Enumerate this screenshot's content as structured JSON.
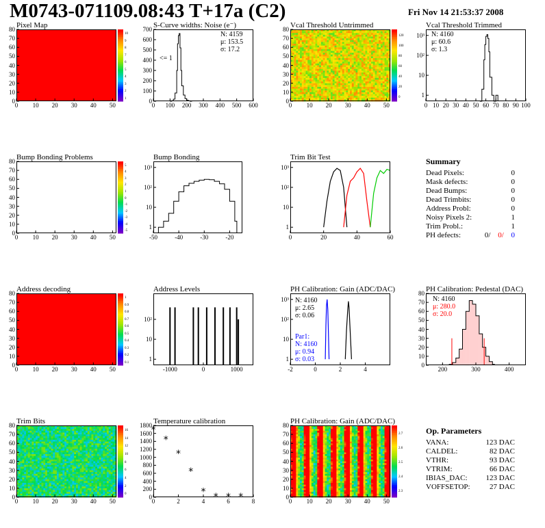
{
  "header": {
    "title": "M0743-071109.08:43 T+17a (C2)",
    "date": "Fri Nov 14 21:53:37 2008"
  },
  "panels": {
    "pixel_map": {
      "title": "Pixel Map"
    },
    "scurve": {
      "title": "S-Curve widths: Noise (e⁻)",
      "n": "N: 4159",
      "mu": "μ: 153.5",
      "sigma": "σ: 17.2",
      "underflow": "<= 1"
    },
    "vcal_untrimmed": {
      "title": "Vcal Threshold Untrimmed"
    },
    "vcal_trimmed": {
      "title": "Vcal Threshold Trimmed",
      "n": "N: 4160",
      "mu": "μ: 60.6",
      "sigma": "σ: 1.3"
    },
    "bump_problems": {
      "title": "Bump Bonding Problems"
    },
    "bump_bonding": {
      "title": "Bump Bonding"
    },
    "trim_bit_test": {
      "title": "Trim Bit Test"
    },
    "address_decoding": {
      "title": "Address decoding"
    },
    "address_levels": {
      "title": "Address Levels"
    },
    "ph_gain": {
      "title": "PH Calibration: Gain (ADC/DAC)",
      "n": "N: 4160",
      "mu": "μ: 2.65",
      "sigma": "σ: 0.06",
      "par1": "Par1:",
      "n2": "N: 4160",
      "mu2": "μ: 0.94",
      "sigma2": "σ: 0.03"
    },
    "ph_pedestal": {
      "title": "PH Calibration: Pedestal (DAC)",
      "n": "N: 4160",
      "mu": "μ: 280.0",
      "sigma": "σ: 20.0"
    },
    "trim_bits": {
      "title": "Trim Bits"
    },
    "temperature": {
      "title": "Temperature calibration"
    },
    "ph_gain_map": {
      "title": "PH Calibration: Gain (ADC/DAC)"
    }
  },
  "summary": {
    "heading": "Summary",
    "rows": [
      {
        "label": "Dead Pixels:",
        "value": "0"
      },
      {
        "label": "Mask defects:",
        "value": "0"
      },
      {
        "label": "Dead Bumps:",
        "value": "0"
      },
      {
        "label": "Dead Trimbits:",
        "value": "0"
      },
      {
        "label": "Address Probl:",
        "value": "0"
      },
      {
        "label": "Noisy Pixels 2:",
        "value": "1"
      },
      {
        "label": "Trim Probl.:",
        "value": "1"
      }
    ],
    "ph_label": "PH defects:",
    "ph_values": [
      "0/",
      "0/",
      "0"
    ]
  },
  "op_params": {
    "heading": "Op. Parameters",
    "rows": [
      {
        "label": "VANA:",
        "value": "123 DAC"
      },
      {
        "label": "CALDEL:",
        "value": "82 DAC"
      },
      {
        "label": "VTHR:",
        "value": "93 DAC"
      },
      {
        "label": "VTRIM:",
        "value": "66 DAC"
      },
      {
        "label": "IBIAS_DAC:",
        "value": "123 DAC"
      },
      {
        "label": "VOFFSETOP:",
        "value": "27 DAC"
      }
    ]
  },
  "colors": {
    "red": "#ff0000",
    "blue": "#0000ff",
    "green": "#00cc00"
  },
  "chart_data": [
    {
      "type": "heatmap",
      "title": "Pixel Map",
      "xlim": [
        0,
        52
      ],
      "ylim": [
        0,
        80
      ],
      "xticks": [
        "0",
        "10",
        "20",
        "30",
        "40",
        "50"
      ],
      "yticks": [
        "0",
        "10",
        "20",
        "30",
        "40",
        "50",
        "60",
        "70",
        "80"
      ],
      "zticks": [
        "1",
        "2",
        "3",
        "4",
        "5",
        "6",
        "7",
        "8",
        "9",
        "10"
      ],
      "uniform_value": 10
    },
    {
      "type": "bar",
      "title": "S-Curve widths: Noise (e⁻)",
      "xlim": [
        0,
        600
      ],
      "ylim": [
        0,
        700
      ],
      "xticks": [
        "0",
        "100",
        "200",
        "300",
        "400",
        "500",
        "600"
      ],
      "yticks": [
        "0",
        "100",
        "200",
        "300",
        "400",
        "500",
        "600",
        "700"
      ],
      "x": [
        100,
        110,
        120,
        130,
        140,
        145,
        150,
        155,
        160,
        165,
        170,
        180,
        190,
        200,
        210,
        220
      ],
      "values": [
        0,
        5,
        20,
        80,
        300,
        560,
        640,
        660,
        520,
        300,
        150,
        60,
        25,
        10,
        4,
        0
      ]
    },
    {
      "type": "heatmap",
      "title": "Vcal Threshold Untrimmed",
      "xlim": [
        0,
        52
      ],
      "ylim": [
        0,
        80
      ],
      "xticks": [
        "0",
        "10",
        "20",
        "30",
        "40",
        "50"
      ],
      "yticks": [
        "0",
        "10",
        "20",
        "30",
        "40",
        "50",
        "60",
        "70",
        "80"
      ],
      "zticks": [
        "0",
        "20",
        "40",
        "60",
        "80",
        "100",
        "120"
      ]
    },
    {
      "type": "bar",
      "title": "Vcal Threshold Trimmed",
      "log_y": true,
      "xlim": [
        0,
        100
      ],
      "ylim": [
        0.5,
        2000
      ],
      "xticks": [
        "0",
        "10",
        "20",
        "30",
        "40",
        "50",
        "60",
        "70",
        "80",
        "90",
        "100"
      ],
      "yticks": [
        "1",
        "10",
        "10²",
        "10³"
      ],
      "x": [
        54,
        56,
        58,
        59,
        60,
        61,
        62,
        63,
        64,
        66,
        68,
        70
      ],
      "values": [
        0,
        2,
        60,
        350,
        900,
        1100,
        700,
        150,
        8,
        1,
        0,
        1
      ]
    },
    {
      "type": "heatmap",
      "title": "Bump Bonding Problems",
      "xlim": [
        0,
        52
      ],
      "ylim": [
        0,
        80
      ],
      "xticks": [
        "0",
        "10",
        "20",
        "30",
        "40",
        "50"
      ],
      "yticks": [
        "0",
        "10",
        "20",
        "30",
        "40",
        "50",
        "60",
        "70",
        "80"
      ],
      "zticks": [
        "-5",
        "-4",
        "-3",
        "-2",
        "-1",
        "0",
        "1",
        "2",
        "3",
        "4",
        "5"
      ],
      "empty": true
    },
    {
      "type": "bar",
      "title": "Bump Bonding",
      "log_y": true,
      "xlim": [
        -50,
        -15
      ],
      "ylim": [
        0.5,
        2000
      ],
      "xticks": [
        "-50",
        "-40",
        "-30",
        "-20"
      ],
      "yticks": [
        "1",
        "10",
        "10²",
        "10³"
      ],
      "x": [
        -48,
        -46,
        -44,
        -42,
        -40,
        -38,
        -36,
        -34,
        -32,
        -30,
        -28,
        -26,
        -24,
        -22,
        -20,
        -18
      ],
      "values": [
        1,
        2,
        5,
        20,
        60,
        120,
        160,
        200,
        230,
        250,
        240,
        200,
        150,
        80,
        20,
        2
      ]
    },
    {
      "type": "line",
      "title": "Trim Bit Test",
      "log_y": true,
      "xlim": [
        0,
        60
      ],
      "ylim": [
        0.5,
        2000
      ],
      "xticks": [
        "0",
        "20",
        "40",
        "60"
      ],
      "yticks": [
        "1",
        "10",
        "10²",
        "10³"
      ],
      "series": [
        {
          "color": "#000000",
          "x": [
            20,
            22,
            24,
            26,
            28,
            30,
            32,
            34
          ],
          "y": [
            1,
            20,
            200,
            600,
            900,
            700,
            100,
            1
          ]
        },
        {
          "color": "#ff0000",
          "x": [
            32,
            34,
            36,
            38,
            40,
            42,
            44,
            46,
            48
          ],
          "y": [
            1,
            40,
            200,
            300,
            600,
            900,
            500,
            20,
            1
          ]
        },
        {
          "color": "#00cc00",
          "x": [
            48,
            50,
            52,
            54,
            56,
            58,
            60
          ],
          "y": [
            1,
            50,
            300,
            700,
            500,
            800,
            700
          ]
        }
      ]
    },
    {
      "type": "heatmap",
      "title": "Address decoding",
      "xlim": [
        0,
        52
      ],
      "ylim": [
        0,
        80
      ],
      "xticks": [
        "0",
        "10",
        "20",
        "30",
        "40",
        "50"
      ],
      "yticks": [
        "0",
        "10",
        "20",
        "30",
        "40",
        "50",
        "60",
        "70",
        "80"
      ],
      "zticks": [
        "0.1",
        "0.2",
        "0.3",
        "0.4",
        "0.5",
        "0.6",
        "0.7",
        "0.8",
        "0.9",
        "1"
      ],
      "uniform_value": 1
    },
    {
      "type": "bar",
      "title": "Address Levels",
      "log_y": true,
      "xlim": [
        -1500,
        1500
      ],
      "ylim": [
        0.5,
        2000
      ],
      "xticks": [
        "-1000",
        "0",
        "1000"
      ],
      "yticks": [
        "1",
        "10",
        "10²"
      ],
      "x": [
        -1000,
        -850,
        -300,
        -150,
        100,
        350,
        600,
        800,
        1000,
        1050
      ],
      "values": [
        400,
        400,
        400,
        400,
        400,
        400,
        400,
        400,
        400,
        100
      ]
    },
    {
      "type": "bar",
      "title": "PH Calibration: Gain (ADC/DAC)",
      "log_y": true,
      "xlim": [
        -2,
        6
      ],
      "ylim": [
        0.5,
        2000
      ],
      "xticks": [
        "-2",
        "0",
        "2",
        "4"
      ],
      "yticks": [
        "1",
        "10",
        "10²",
        "10³"
      ],
      "series": [
        {
          "name": "Par1",
          "color": "#0000ff",
          "x": [
            0.8,
            0.85,
            0.9,
            0.95,
            1.0,
            1.05,
            1.1
          ],
          "values": [
            1,
            50,
            500,
            1000,
            300,
            20,
            1
          ]
        },
        {
          "color": "#000000",
          "x": [
            2.4,
            2.5,
            2.6,
            2.65,
            2.7,
            2.8,
            2.9
          ],
          "values": [
            1,
            30,
            300,
            800,
            400,
            20,
            1
          ]
        }
      ]
    },
    {
      "type": "bar",
      "title": "PH Calibration: Pedestal (DAC)",
      "xlim": [
        150,
        450
      ],
      "ylim": [
        0,
        80
      ],
      "xticks": [
        "200",
        "300",
        "400"
      ],
      "yticks": [
        "0",
        "10",
        "20",
        "30",
        "40",
        "50",
        "60",
        "70",
        "80"
      ],
      "x": [
        220,
        230,
        240,
        250,
        260,
        270,
        280,
        290,
        300,
        310,
        320,
        330,
        340,
        350
      ],
      "values": [
        1,
        3,
        8,
        18,
        40,
        60,
        72,
        68,
        55,
        35,
        20,
        10,
        4,
        1
      ]
    },
    {
      "type": "heatmap",
      "title": "Trim Bits",
      "xlim": [
        0,
        52
      ],
      "ylim": [
        0,
        80
      ],
      "xticks": [
        "0",
        "10",
        "20",
        "30",
        "40",
        "50"
      ],
      "yticks": [
        "0",
        "10",
        "20",
        "30",
        "40",
        "50",
        "60",
        "70",
        "80"
      ],
      "zticks": [
        "0",
        "2",
        "4",
        "6",
        "8",
        "10",
        "12",
        "14",
        "16"
      ]
    },
    {
      "type": "scatter",
      "title": "Temperature calibration",
      "xlim": [
        0,
        8
      ],
      "ylim": [
        0,
        1800
      ],
      "xticks": [
        "0",
        "2",
        "4",
        "6",
        "8"
      ],
      "yticks": [
        "0",
        "200",
        "400",
        "600",
        "800",
        "1000",
        "1200",
        "1400",
        "1600",
        "1800"
      ],
      "x": [
        0,
        1,
        2,
        3,
        4,
        5,
        6,
        7
      ],
      "y": [
        1700,
        1450,
        1100,
        650,
        150,
        20,
        20,
        20
      ]
    },
    {
      "type": "heatmap",
      "title": "PH Calibration: Gain (ADC/DAC)",
      "xlim": [
        0,
        52
      ],
      "ylim": [
        0,
        80
      ],
      "xticks": [
        "0",
        "10",
        "20",
        "30",
        "40",
        "50"
      ],
      "yticks": [
        "0",
        "10",
        "20",
        "30",
        "40",
        "50",
        "60",
        "70",
        "80"
      ],
      "zticks": [
        "2.3",
        "2.4",
        "2.5",
        "2.6",
        "2.7"
      ]
    }
  ]
}
